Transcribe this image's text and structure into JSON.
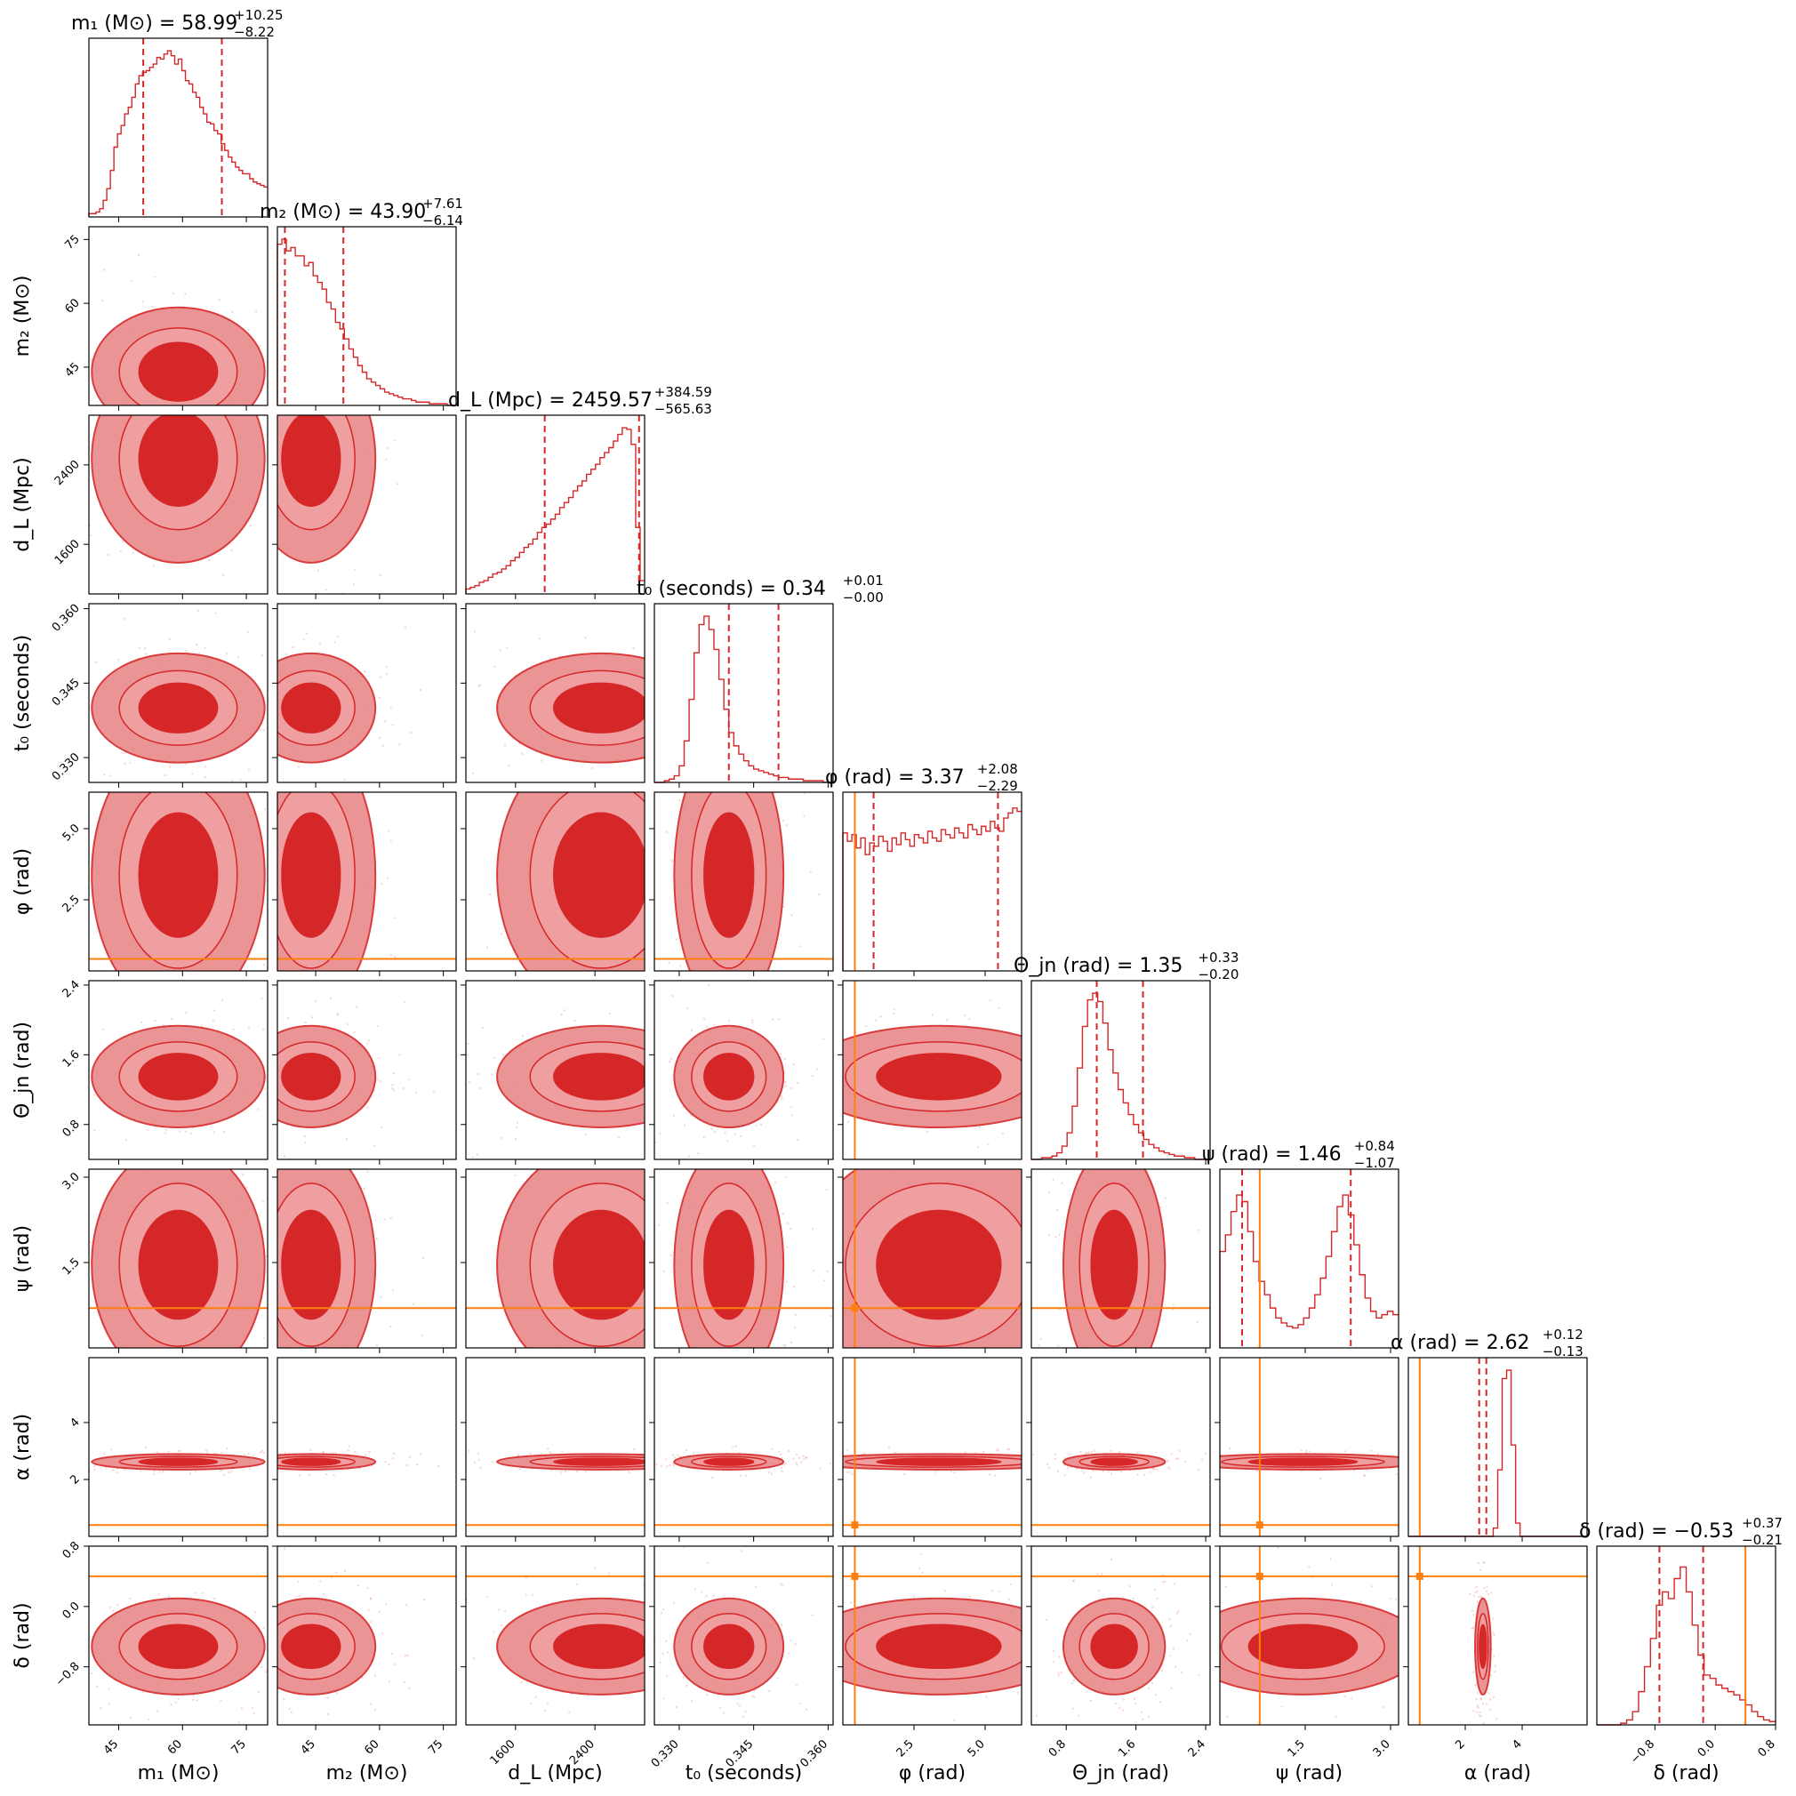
{
  "chart_data": {
    "type": "corner",
    "description_note": "Corner plot of posterior samples; contour filled regions; truth/injection values marked in orange.",
    "colors": {
      "posterior": "#d62728",
      "contour_light": "#e8898a",
      "contour_dark": "#d62728",
      "truth": "#ff7f0e"
    },
    "parameters": [
      {
        "key": "m1",
        "axis_label": "m₁ (M⊙)",
        "title": "m₁ (M⊙) = 58.99",
        "median": 58.99,
        "plus": "+10.25",
        "minus": "−8.22",
        "range": [
          38,
          80
        ],
        "ticks": [
          45,
          60,
          75
        ],
        "tick_labels": [
          "45",
          "60",
          "75"
        ],
        "truth": null,
        "hist": [
          0.02,
          0.02,
          0.03,
          0.05,
          0.1,
          0.17,
          0.28,
          0.42,
          0.5,
          0.55,
          0.62,
          0.66,
          0.72,
          0.8,
          0.85,
          0.87,
          0.88,
          0.9,
          0.92,
          0.96,
          0.95,
          0.98,
          1.0,
          0.97,
          0.92,
          0.95,
          0.88,
          0.82,
          0.8,
          0.75,
          0.72,
          0.66,
          0.62,
          0.57,
          0.56,
          0.52,
          0.5,
          0.44,
          0.4,
          0.36,
          0.33,
          0.3,
          0.28,
          0.26,
          0.26,
          0.23,
          0.21,
          0.2,
          0.19,
          0.18
        ]
      },
      {
        "key": "m2",
        "axis_label": "m₂ (M⊙)",
        "title": "m₂ (M⊙) = 43.90",
        "median": 43.9,
        "plus": "+7.61",
        "minus": "−6.14",
        "range": [
          36,
          78
        ],
        "ticks": [
          45,
          60,
          75
        ],
        "tick_labels": [
          "45",
          "60",
          "75"
        ],
        "truth": null,
        "hist": [
          0.97,
          1.0,
          0.93,
          0.95,
          0.9,
          0.9,
          0.84,
          0.86,
          0.78,
          0.74,
          0.7,
          0.62,
          0.58,
          0.5,
          0.46,
          0.4,
          0.34,
          0.29,
          0.24,
          0.2,
          0.16,
          0.14,
          0.12,
          0.1,
          0.08,
          0.07,
          0.06,
          0.05,
          0.04,
          0.04,
          0.03,
          0.02,
          0.02,
          0.02,
          0.01,
          0.01,
          0.01,
          0.01,
          0.0,
          0.0
        ]
      },
      {
        "key": "dL",
        "axis_label": "d_L (Mpc)",
        "title": "d_L (Mpc) = 2459.57",
        "median": 2459.57,
        "plus": "+384.59",
        "minus": "−565.63",
        "range": [
          1100,
          2900
        ],
        "ticks": [
          1600,
          2400
        ],
        "tick_labels": [
          "1600",
          "2400"
        ],
        "truth": null,
        "hist": [
          0.03,
          0.04,
          0.05,
          0.07,
          0.08,
          0.1,
          0.12,
          0.13,
          0.15,
          0.17,
          0.2,
          0.22,
          0.25,
          0.28,
          0.3,
          0.33,
          0.37,
          0.4,
          0.42,
          0.45,
          0.48,
          0.52,
          0.55,
          0.58,
          0.62,
          0.65,
          0.68,
          0.72,
          0.75,
          0.78,
          0.82,
          0.85,
          0.88,
          0.92,
          0.96,
          1.0,
          0.99,
          0.9,
          0.4,
          0.08
        ]
      },
      {
        "key": "t0",
        "axis_label": "t₀ (seconds)",
        "title": "t₀ (seconds) = 0.34",
        "median": 0.34,
        "plus": "+0.01",
        "minus": "−0.00",
        "range": [
          0.325,
          0.361
        ],
        "ticks": [
          0.33,
          0.345,
          0.36
        ],
        "tick_labels": [
          "0.330",
          "0.345",
          "0.360"
        ],
        "truth": null,
        "hist": [
          0.0,
          0.0,
          0.01,
          0.02,
          0.04,
          0.1,
          0.25,
          0.5,
          0.78,
          0.95,
          1.0,
          0.92,
          0.8,
          0.62,
          0.44,
          0.3,
          0.22,
          0.17,
          0.13,
          0.1,
          0.08,
          0.07,
          0.06,
          0.05,
          0.04,
          0.03,
          0.03,
          0.02,
          0.02,
          0.02,
          0.01,
          0.01,
          0.01,
          0.01,
          0.0,
          0.0
        ]
      },
      {
        "key": "phi",
        "axis_label": "φ (rad)",
        "title": "φ (rad) = 3.37",
        "median": 3.37,
        "plus": "+2.08",
        "minus": "−2.29",
        "range": [
          0,
          6.28
        ],
        "ticks": [
          2.5,
          5.0
        ],
        "tick_labels": [
          "2.5",
          "5.0"
        ],
        "truth": 0.42,
        "hist": [
          0.83,
          0.78,
          0.82,
          0.74,
          0.8,
          0.7,
          0.77,
          0.75,
          0.81,
          0.78,
          0.72,
          0.8,
          0.76,
          0.83,
          0.79,
          0.75,
          0.82,
          0.8,
          0.77,
          0.84,
          0.8,
          0.78,
          0.85,
          0.82,
          0.8,
          0.86,
          0.83,
          0.8,
          0.88,
          0.85,
          0.82,
          0.87,
          0.84,
          0.9,
          0.86,
          0.84,
          0.92,
          0.95,
          0.98,
          0.96
        ]
      },
      {
        "key": "theta_jn",
        "axis_label": "Θ_jn (rad)",
        "title": "Θ_jn (rad) = 1.35",
        "median": 1.35,
        "plus": "+0.33",
        "minus": "−0.20",
        "range": [
          0.4,
          2.45
        ],
        "ticks": [
          0.8,
          1.6,
          2.4
        ],
        "tick_labels": [
          "0.8",
          "1.6",
          "2.4"
        ],
        "truth": null,
        "hist": [
          0.0,
          0.0,
          0.01,
          0.01,
          0.02,
          0.04,
          0.08,
          0.16,
          0.32,
          0.55,
          0.8,
          0.96,
          1.0,
          0.95,
          0.82,
          0.66,
          0.52,
          0.42,
          0.34,
          0.27,
          0.21,
          0.16,
          0.12,
          0.09,
          0.07,
          0.05,
          0.04,
          0.03,
          0.02,
          0.02,
          0.01,
          0.01,
          0.0,
          0.0,
          0.0
        ]
      },
      {
        "key": "psi",
        "axis_label": "ψ (rad)",
        "title": "ψ (rad) = 1.46",
        "median": 1.46,
        "plus": "+0.84",
        "minus": "−1.07",
        "range": [
          0,
          3.14
        ],
        "ticks": [
          1.5,
          3.0
        ],
        "tick_labels": [
          "1.5",
          "3.0"
        ],
        "truth": 0.7,
        "hist": [
          0.58,
          0.68,
          0.82,
          0.92,
          0.88,
          0.7,
          0.52,
          0.4,
          0.32,
          0.24,
          0.18,
          0.15,
          0.13,
          0.12,
          0.14,
          0.18,
          0.24,
          0.32,
          0.42,
          0.55,
          0.7,
          0.85,
          0.92,
          0.8,
          0.62,
          0.44,
          0.3,
          0.22,
          0.18,
          0.2,
          0.22,
          0.2
        ]
      },
      {
        "key": "alpha",
        "axis_label": "α (rad)",
        "title": "α (rad) = 2.62",
        "median": 2.62,
        "plus": "+0.12",
        "minus": "−0.13",
        "range": [
          0,
          6.28
        ],
        "ticks": [
          2,
          4
        ],
        "tick_labels": [
          "2",
          "4"
        ],
        "truth": 0.4,
        "hist": [
          0,
          0,
          0,
          0,
          0,
          0,
          0,
          0,
          0,
          0,
          0,
          0,
          0,
          0,
          0,
          0,
          0,
          0,
          0,
          0.05,
          0.4,
          0.95,
          1.0,
          0.55,
          0.08,
          0,
          0,
          0,
          0,
          0,
          0,
          0,
          0,
          0,
          0,
          0,
          0,
          0,
          0,
          0
        ]
      },
      {
        "key": "delta",
        "axis_label": "δ (rad)",
        "title": "δ (rad) = −0.53",
        "median": -0.53,
        "plus": "+0.37",
        "minus": "−0.21",
        "range": [
          -1.57,
          0.8
        ],
        "ticks": [
          -0.8,
          0.0,
          0.8
        ],
        "tick_labels": [
          "−0.8",
          "0.0",
          "0.8"
        ],
        "truth": 0.4,
        "hist": [
          0,
          0,
          0,
          0,
          0.01,
          0.03,
          0.08,
          0.2,
          0.35,
          0.52,
          0.72,
          0.8,
          0.76,
          0.88,
          0.95,
          0.8,
          0.6,
          0.42,
          0.3,
          0.28,
          0.24,
          0.22,
          0.2,
          0.18,
          0.15,
          0.12,
          0.08,
          0.05,
          0.03,
          0.02
        ]
      }
    ],
    "y_tick_labels": {
      "m2": [
        "45",
        "60",
        "75"
      ],
      "dL": [
        "1600",
        "2400"
      ],
      "t0": [
        "0.330",
        "0.345",
        "0.360"
      ],
      "phi": [
        "2.5",
        "5.0"
      ],
      "theta_jn": [
        "0.8",
        "1.6",
        "2.4"
      ],
      "psi": [
        "1.5",
        "3.0"
      ],
      "alpha": [
        "2",
        "4"
      ],
      "delta": [
        "−0.8",
        "0.0",
        "0.8"
      ]
    }
  }
}
